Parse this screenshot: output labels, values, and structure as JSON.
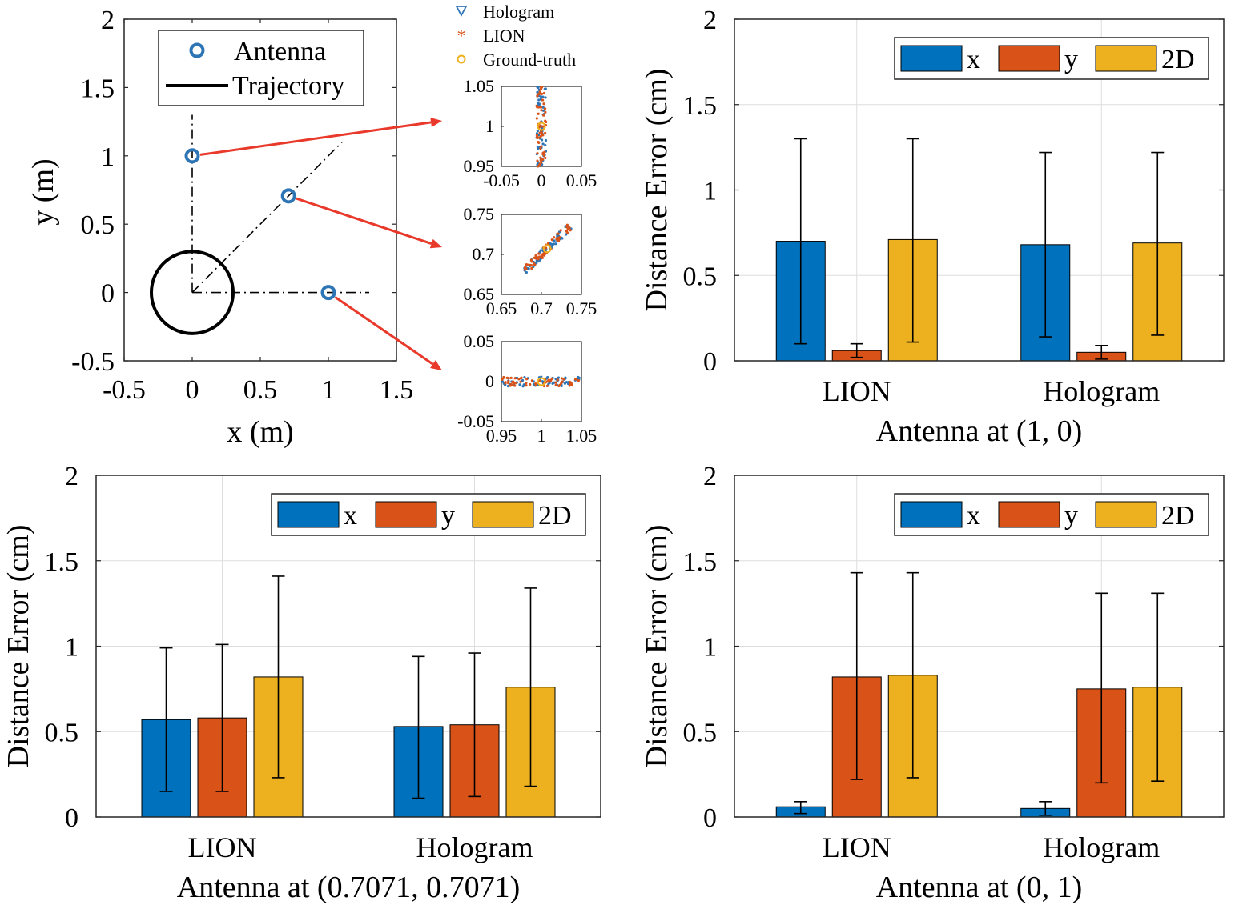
{
  "colors": {
    "x": "#0072BD",
    "y": "#D95319",
    "twoD": "#EDB120",
    "arrow": "#E8392B",
    "grid": "#DEDEDE",
    "antenna": "#2E75B6"
  },
  "chart_data": [
    {
      "id": "scenario",
      "type": "scatter",
      "xlabel": "x (m)",
      "ylabel": "y (m)",
      "xlim": [
        -0.5,
        1.5
      ],
      "ylim": [
        -0.5,
        2
      ],
      "xticks": [
        "-0.5",
        "0",
        "0.5",
        "1",
        "1.5"
      ],
      "yticks": [
        "-0.5",
        "0",
        "0.5",
        "1",
        "1.5",
        "2"
      ],
      "legend": {
        "antenna": "Antenna",
        "trajectory": "Trajectory",
        "placement": "top"
      },
      "antennas": [
        {
          "x": 0,
          "y": 1
        },
        {
          "x": 0.7071,
          "y": 0.7071
        },
        {
          "x": 1,
          "y": 0
        }
      ],
      "trajectory": {
        "center": [
          0,
          0
        ],
        "radius": 0.3
      }
    },
    {
      "id": "insets",
      "type": "scatter",
      "legend": [
        "Hologram",
        "LION",
        "Ground-truth"
      ],
      "panels": [
        {
          "xlim": [
            -0.05,
            0.05
          ],
          "ylim": [
            0.95,
            1.05
          ],
          "xticks": [
            "-0.05",
            "0",
            "0.05"
          ],
          "yticks": [
            "0.95",
            "1",
            "1.05"
          ],
          "ground_truth": [
            0,
            1
          ]
        },
        {
          "xlim": [
            0.65,
            0.75
          ],
          "ylim": [
            0.65,
            0.75
          ],
          "xticks": [
            "0.65",
            "0.7",
            "0.75"
          ],
          "yticks": [
            "0.65",
            "0.7",
            "0.75"
          ],
          "ground_truth": [
            0.7071,
            0.7071
          ]
        },
        {
          "xlim": [
            0.95,
            1.05
          ],
          "ylim": [
            -0.05,
            0.05
          ],
          "xticks": [
            "0.95",
            "1",
            "1.05"
          ],
          "yticks": [
            "-0.05",
            "0",
            "0.05"
          ],
          "ground_truth": [
            1,
            0
          ]
        }
      ]
    },
    {
      "id": "bar_1_0",
      "type": "bar",
      "title": "",
      "xlabel": "Antenna at (1, 0)",
      "ylabel": "Distance Error (cm)",
      "ylim": [
        0,
        2
      ],
      "yticks": [
        "0",
        "0.5",
        "1",
        "1.5",
        "2"
      ],
      "categories": [
        "LION",
        "Hologram"
      ],
      "legend_placement": "top-right",
      "series": [
        {
          "name": "x",
          "values": [
            0.7,
            0.68
          ],
          "err_low": [
            0.1,
            0.14
          ],
          "err_high": [
            1.3,
            1.22
          ]
        },
        {
          "name": "y",
          "values": [
            0.06,
            0.05
          ],
          "err_low": [
            0.02,
            0.01
          ],
          "err_high": [
            0.1,
            0.09
          ]
        },
        {
          "name": "2D",
          "values": [
            0.71,
            0.69
          ],
          "err_low": [
            0.11,
            0.15
          ],
          "err_high": [
            1.3,
            1.22
          ]
        }
      ]
    },
    {
      "id": "bar_07071",
      "type": "bar",
      "title": "",
      "xlabel": "Antenna at (0.7071, 0.7071)",
      "ylabel": "Distance Error (cm)",
      "ylim": [
        0,
        2
      ],
      "yticks": [
        "0",
        "0.5",
        "1",
        "1.5",
        "2"
      ],
      "categories": [
        "LION",
        "Hologram"
      ],
      "legend_placement": "top-right",
      "series": [
        {
          "name": "x",
          "values": [
            0.57,
            0.53
          ],
          "err_low": [
            0.15,
            0.11
          ],
          "err_high": [
            0.99,
            0.94
          ]
        },
        {
          "name": "y",
          "values": [
            0.58,
            0.54
          ],
          "err_low": [
            0.15,
            0.12
          ],
          "err_high": [
            1.01,
            0.96
          ]
        },
        {
          "name": "2D",
          "values": [
            0.82,
            0.76
          ],
          "err_low": [
            0.23,
            0.18
          ],
          "err_high": [
            1.41,
            1.34
          ]
        }
      ]
    },
    {
      "id": "bar_0_1",
      "type": "bar",
      "title": "",
      "xlabel": "Antenna at (0, 1)",
      "ylabel": "Distance Error (cm)",
      "ylim": [
        0,
        2
      ],
      "yticks": [
        "0",
        "0.5",
        "1",
        "1.5",
        "2"
      ],
      "categories": [
        "LION",
        "Hologram"
      ],
      "legend_placement": "top-right",
      "series": [
        {
          "name": "x",
          "values": [
            0.06,
            0.05
          ],
          "err_low": [
            0.02,
            0.01
          ],
          "err_high": [
            0.09,
            0.09
          ]
        },
        {
          "name": "y",
          "values": [
            0.82,
            0.75
          ],
          "err_low": [
            0.22,
            0.2
          ],
          "err_high": [
            1.43,
            1.31
          ]
        },
        {
          "name": "2D",
          "values": [
            0.83,
            0.76
          ],
          "err_low": [
            0.23,
            0.21
          ],
          "err_high": [
            1.43,
            1.31
          ]
        }
      ]
    }
  ]
}
